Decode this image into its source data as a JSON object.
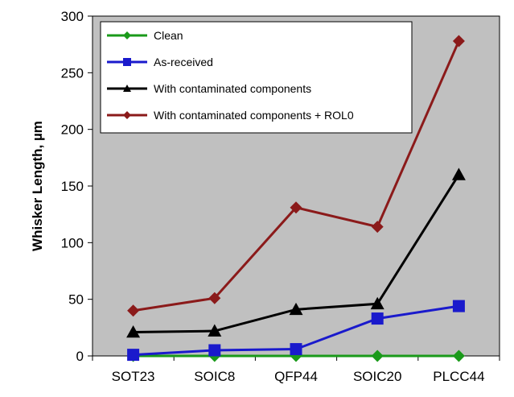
{
  "chart_data": {
    "type": "line",
    "title": "",
    "xlabel": "",
    "ylabel": "Whisker Length, µm",
    "ylim": [
      0,
      300
    ],
    "yticks": [
      0,
      50,
      100,
      150,
      200,
      250,
      300
    ],
    "categories": [
      "SOT23",
      "SOIC8",
      "QFP44",
      "SOIC20",
      "PLCC44"
    ],
    "grid": false,
    "legend_position": "top-left",
    "plot_background": "#c0c0c0",
    "series": [
      {
        "name": "Clean",
        "values": [
          0,
          0,
          0,
          0,
          0
        ],
        "color": "#1a9a1a",
        "marker": "diamond"
      },
      {
        "name": "As-received",
        "values": [
          1,
          5,
          6,
          33,
          44
        ],
        "color": "#1a1acc",
        "marker": "square"
      },
      {
        "name": "With contaminated components",
        "values": [
          21,
          22,
          41,
          46,
          160
        ],
        "color": "#000000",
        "marker": "triangle"
      },
      {
        "name": "With contaminated components + ROL0",
        "values": [
          40,
          51,
          131,
          114,
          278
        ],
        "color": "#8b1a1a",
        "marker": "diamond"
      }
    ]
  }
}
